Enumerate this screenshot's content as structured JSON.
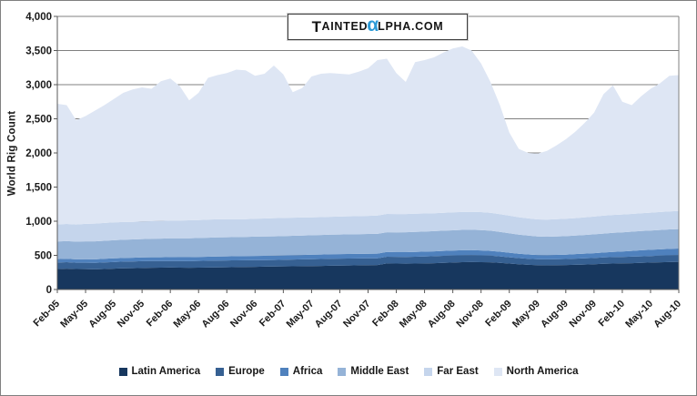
{
  "logo": {
    "part1": "T",
    "part2": "AINTED",
    "alpha": "α",
    "part3": "LPHA.COM",
    "alpha_color": "#2E9BD6"
  },
  "axes": {
    "y_ticks": [
      "0",
      "500",
      "1,000",
      "1,500",
      "2,000",
      "2,500",
      "3,000",
      "3,500",
      "4,000"
    ],
    "grid_color": "#808080",
    "axis_color": "#595959",
    "label_color": "#1a1a1a"
  },
  "chart_data": {
    "type": "area",
    "stacked": true,
    "title": "",
    "xlabel": "",
    "ylabel": "World Rig Count",
    "ylim": [
      0,
      4000
    ],
    "ytick_step": 500,
    "x_labels_every": 3,
    "grid": true,
    "legend_position": "bottom",
    "categories": [
      "Feb-05",
      "Mar-05",
      "Apr-05",
      "May-05",
      "Jun-05",
      "Jul-05",
      "Aug-05",
      "Sep-05",
      "Oct-05",
      "Nov-05",
      "Dec-05",
      "Jan-06",
      "Feb-06",
      "Mar-06",
      "Apr-06",
      "May-06",
      "Jun-06",
      "Jul-06",
      "Aug-06",
      "Sep-06",
      "Oct-06",
      "Nov-06",
      "Dec-06",
      "Jan-07",
      "Feb-07",
      "Mar-07",
      "Apr-07",
      "May-07",
      "Jun-07",
      "Jul-07",
      "Aug-07",
      "Sep-07",
      "Oct-07",
      "Nov-07",
      "Dec-07",
      "Jan-08",
      "Feb-08",
      "Mar-08",
      "Apr-08",
      "May-08",
      "Jun-08",
      "Jul-08",
      "Aug-08",
      "Sep-08",
      "Oct-08",
      "Nov-08",
      "Dec-08",
      "Jan-09",
      "Feb-09",
      "Mar-09",
      "Apr-09",
      "May-09",
      "Jun-09",
      "Jul-09",
      "Aug-09",
      "Sep-09",
      "Oct-09",
      "Nov-09",
      "Dec-09",
      "Jan-10",
      "Feb-10",
      "Mar-10",
      "Apr-10",
      "May-10",
      "Jun-10",
      "Jul-10",
      "Aug-10"
    ],
    "series": [
      {
        "name": "Latin America",
        "color": "#17375E",
        "values": [
          300,
          305,
          300,
          298,
          295,
          300,
          305,
          310,
          312,
          315,
          318,
          320,
          322,
          320,
          318,
          320,
          322,
          324,
          326,
          328,
          330,
          332,
          334,
          336,
          338,
          340,
          342,
          344,
          346,
          348,
          350,
          352,
          354,
          356,
          358,
          382,
          380,
          378,
          380,
          382,
          386,
          390,
          395,
          400,
          402,
          400,
          398,
          390,
          380,
          370,
          362,
          356,
          354,
          356,
          358,
          362,
          366,
          370,
          376,
          380,
          383,
          386,
          390,
          394,
          398,
          402,
          405
        ]
      },
      {
        "name": "Europe",
        "color": "#366092",
        "values": [
          95,
          95,
          92,
          94,
          95,
          96,
          97,
          98,
          98,
          99,
          98,
          96,
          95,
          96,
          97,
          98,
          99,
          100,
          100,
          99,
          98,
          98,
          97,
          96,
          97,
          98,
          99,
          100,
          101,
          102,
          102,
          101,
          100,
          100,
          99,
          98,
          98,
          99,
          100,
          101,
          102,
          103,
          103,
          102,
          101,
          100,
          98,
          95,
          92,
          90,
          88,
          87,
          87,
          88,
          89,
          90,
          91,
          92,
          93,
          94,
          94,
          95,
          96,
          97,
          98,
          99,
          100
        ]
      },
      {
        "name": "Africa",
        "color": "#4F81BD",
        "values": [
          50,
          50,
          50,
          52,
          52,
          53,
          54,
          54,
          55,
          55,
          56,
          56,
          57,
          57,
          58,
          58,
          59,
          60,
          60,
          61,
          61,
          62,
          62,
          63,
          63,
          64,
          64,
          65,
          65,
          66,
          66,
          67,
          67,
          68,
          68,
          69,
          69,
          70,
          70,
          71,
          71,
          72,
          72,
          73,
          73,
          72,
          70,
          68,
          66,
          64,
          63,
          62,
          62,
          63,
          64,
          66,
          68,
          70,
          72,
          76,
          80,
          84,
          88,
          90,
          92,
          94,
          95
        ]
      },
      {
        "name": "Middle East",
        "color": "#95B3D7",
        "values": [
          258,
          258,
          260,
          262,
          263,
          264,
          265,
          266,
          268,
          270,
          272,
          274,
          275,
          276,
          277,
          278,
          278,
          279,
          280,
          280,
          281,
          282,
          283,
          284,
          284,
          285,
          285,
          286,
          286,
          287,
          287,
          288,
          288,
          289,
          290,
          290,
          291,
          292,
          293,
          294,
          295,
          296,
          297,
          298,
          298,
          297,
          295,
          290,
          285,
          280,
          276,
          272,
          270,
          270,
          271,
          272,
          274,
          276,
          278,
          280,
          281,
          282,
          282,
          283,
          284,
          285,
          286
        ]
      },
      {
        "name": "Far East",
        "color": "#C5D5EC",
        "values": [
          250,
          252,
          250,
          255,
          260,
          262,
          262,
          260,
          258,
          258,
          256,
          258,
          260,
          262,
          263,
          264,
          265,
          265,
          264,
          262,
          260,
          262,
          264,
          266,
          266,
          265,
          264,
          263,
          262,
          262,
          263,
          264,
          265,
          266,
          267,
          268,
          268,
          267,
          266,
          265,
          264,
          263,
          262,
          262,
          263,
          264,
          263,
          260,
          258,
          255,
          252,
          250,
          251,
          252,
          254,
          256,
          258,
          260,
          262,
          262,
          261,
          260,
          260,
          261,
          262,
          263,
          264
        ]
      },
      {
        "name": "North America",
        "color": "#DEE6F4",
        "values": [
          1767,
          1740,
          1528,
          1579,
          1655,
          1725,
          1807,
          1892,
          1939,
          1963,
          1940,
          2046,
          2081,
          1969,
          1757,
          1862,
          2077,
          2112,
          2140,
          2190,
          2180,
          2094,
          2120,
          2235,
          2102,
          1838,
          1896,
          2062,
          2100,
          2105,
          2092,
          2078,
          2116,
          2161,
          2278,
          2273,
          2064,
          1934,
          2221,
          2247,
          2282,
          2346,
          2401,
          2425,
          2363,
          2177,
          1916,
          1597,
          1219,
          1001,
          959,
          963,
          1006,
          1081,
          1164,
          1264,
          1383,
          1522,
          1779,
          1898,
          1651,
          1593,
          1714,
          1815,
          1886,
          1987,
          1990
        ]
      }
    ]
  }
}
